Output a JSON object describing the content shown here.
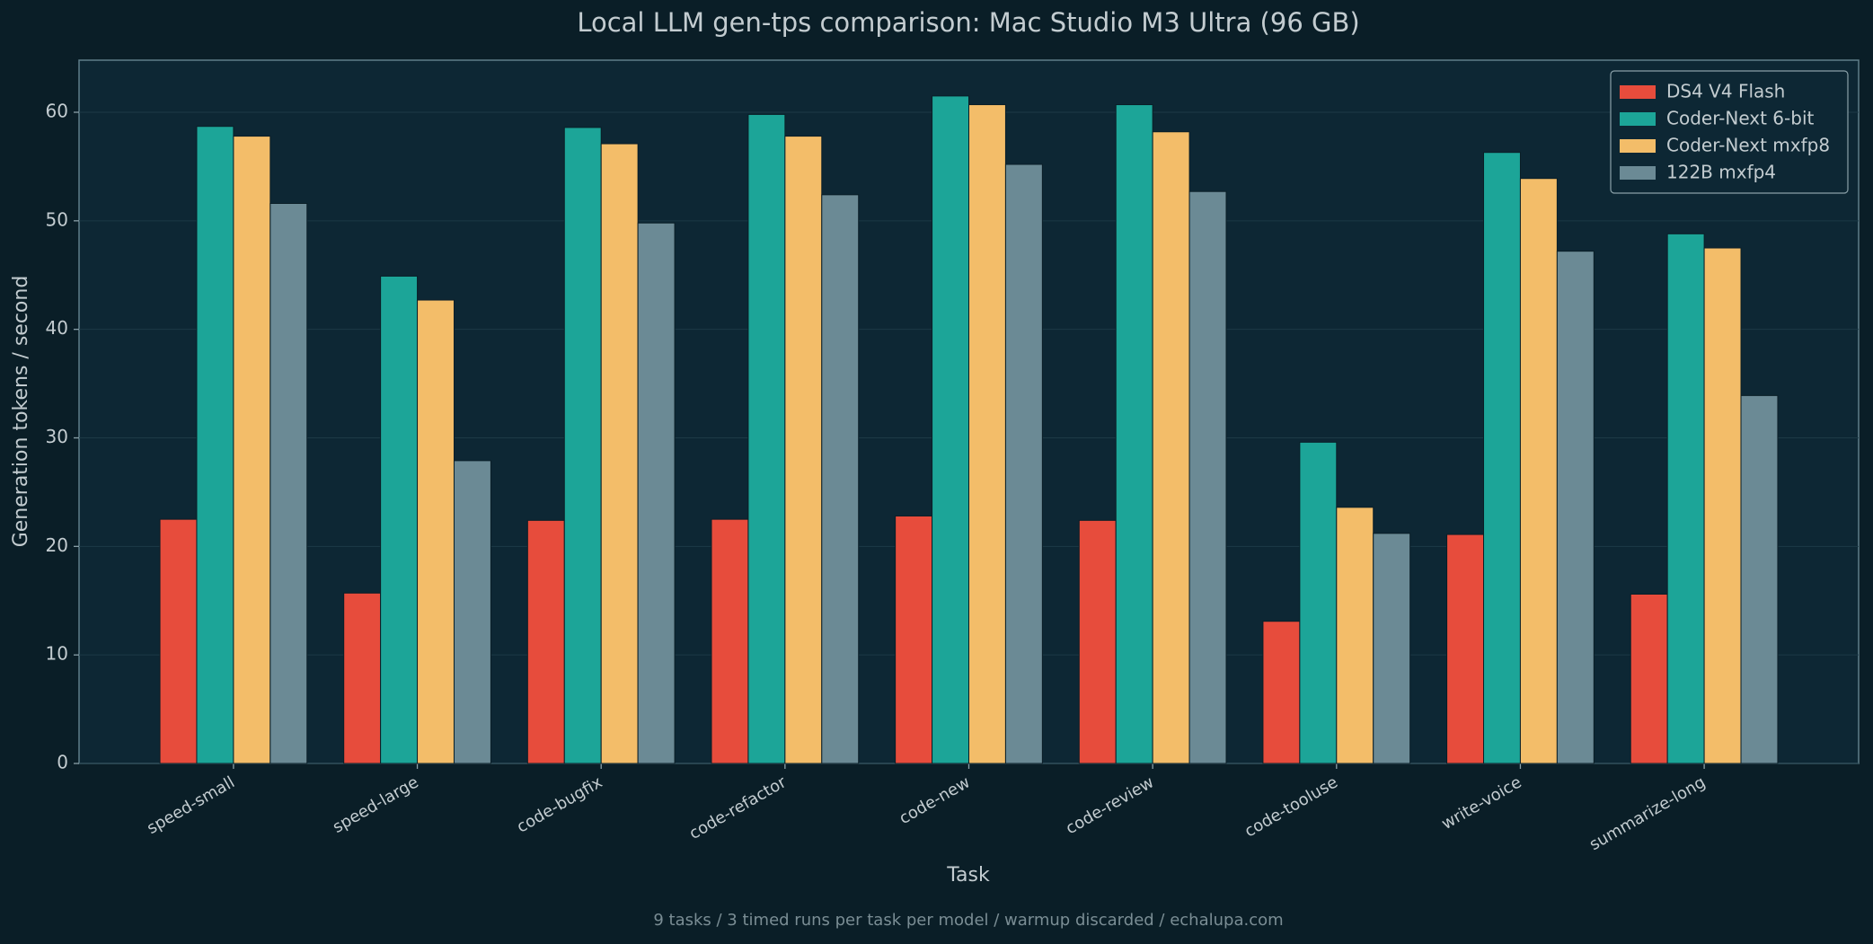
{
  "chart_data": {
    "type": "bar",
    "title": "Local LLM gen-tps comparison: Mac Studio M3 Ultra (96 GB)",
    "x_label": "Task",
    "y_label": "Generation tokens / second",
    "footer": "9 tasks  /  3 timed runs per task per model  /  warmup discarded  /  echalupa.com",
    "categories": [
      "speed-small",
      "speed-large",
      "code-bugfix",
      "code-refactor",
      "code-new",
      "code-review",
      "code-tooluse",
      "write-voice",
      "summarize-long"
    ],
    "series": [
      {
        "name": "DS4 V4 Flash",
        "color": "#e74c3c",
        "values": [
          22.5,
          15.7,
          22.4,
          22.5,
          22.8,
          22.4,
          13.1,
          21.1,
          15.6
        ]
      },
      {
        "name": "Coder-Next 6-bit",
        "color": "#1ca598",
        "values": [
          58.7,
          44.9,
          58.6,
          59.8,
          61.5,
          60.7,
          29.6,
          56.3,
          48.8
        ]
      },
      {
        "name": "Coder-Next mxfp8",
        "color": "#f3bd69",
        "values": [
          57.8,
          42.7,
          57.1,
          57.8,
          60.7,
          58.2,
          23.6,
          53.9,
          47.5
        ]
      },
      {
        "name": "122B mxfp4",
        "color": "#6b8a95",
        "values": [
          51.6,
          27.9,
          49.8,
          52.4,
          55.2,
          52.7,
          21.2,
          47.2,
          33.9
        ]
      }
    ],
    "ylim": [
      0,
      64.8
    ],
    "yticks": [
      0,
      10,
      20,
      30,
      40,
      50,
      60
    ],
    "grid": true,
    "legend": "upper right"
  }
}
